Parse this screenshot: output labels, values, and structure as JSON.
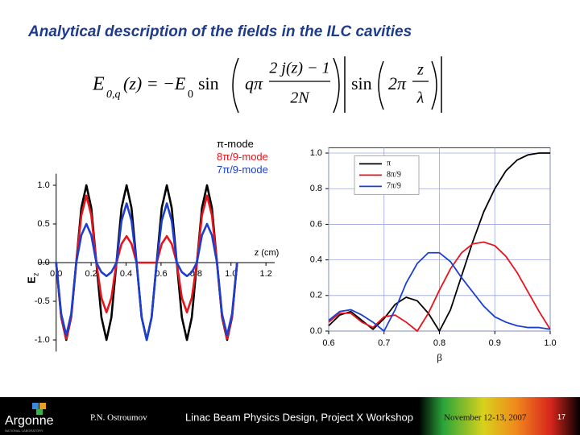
{
  "title": "Analytical description of the fields in the ILC cavities",
  "formula": [
    "E",
    "0,q",
    "(z) = −E",
    "0",
    "sin",
    "qπ",
    "2 j(z) − 1",
    "2N",
    "sin",
    "2π",
    "z",
    "λ"
  ],
  "chart_data": [
    {
      "type": "line",
      "x_label": "z (cm)",
      "y_label": "E",
      "y_label_sub": "z",
      "x": [
        0,
        0.029,
        0.058,
        0.086,
        0.115,
        0.144,
        0.173,
        0.201,
        0.23,
        0.259,
        0.288,
        0.316,
        0.345,
        0.374,
        0.403,
        0.431,
        0.46,
        0.489,
        0.518,
        0.546,
        0.575,
        0.604,
        0.633,
        0.661,
        0.69,
        0.719,
        0.748,
        0.776,
        0.805,
        0.834,
        0.863,
        0.891,
        0.92,
        0.949,
        0.978,
        1.006,
        1.035
      ],
      "series": [
        {
          "name": "π-mode",
          "color": "#000000",
          "values": [
            0,
            -0.707,
            -1,
            -0.707,
            0,
            0.707,
            1,
            0.707,
            0,
            -0.707,
            -1,
            -0.707,
            0,
            0.707,
            1,
            0.707,
            0,
            -0.707,
            -1,
            -0.707,
            0,
            0.707,
            1,
            0.707,
            0,
            -0.707,
            -1,
            -0.707,
            0,
            0.707,
            1,
            0.707,
            0,
            -0.707,
            -1,
            -0.707,
            0
          ]
        },
        {
          "name": "8π/9-mode",
          "color": "#e8141c",
          "values": [
            0,
            -0.696,
            -0.985,
            -0.696,
            0,
            0.612,
            0.866,
            0.612,
            0,
            -0.455,
            -0.643,
            -0.455,
            0,
            0.242,
            0.342,
            0.242,
            0,
            0,
            0,
            0,
            0,
            0.242,
            0.342,
            0.242,
            0,
            -0.455,
            -0.643,
            -0.455,
            0,
            0.612,
            0.866,
            0.612,
            0,
            -0.696,
            -0.985,
            -0.696,
            0
          ]
        },
        {
          "name": "7π/9-mode",
          "color": "#1c3fd0",
          "values": [
            0,
            -0.665,
            -0.94,
            -0.665,
            0,
            0.354,
            0.5,
            0.354,
            0,
            -0.123,
            -0.174,
            -0.123,
            0,
            0.542,
            0.766,
            0.542,
            0,
            -0.707,
            -1,
            -0.707,
            0,
            0.542,
            0.766,
            0.542,
            0,
            -0.123,
            -0.174,
            -0.123,
            0,
            0.354,
            0.5,
            0.354,
            0,
            -0.665,
            -0.94,
            -0.665,
            0
          ]
        }
      ],
      "xlim": [
        -0.1,
        1.25
      ],
      "ylim": [
        -1.15,
        1.15
      ],
      "xticks": [
        {
          "value": 0,
          "label": "0.0"
        },
        0.2,
        0.4,
        0.6,
        0.8,
        {
          "value": 1,
          "label": "1.0"
        },
        1.2
      ],
      "yticks": [
        {
          "value": -1,
          "label": "-1.0"
        },
        -0.5,
        {
          "value": 0,
          "label": "0.0"
        },
        0.5,
        {
          "value": 1,
          "label": "1.0"
        }
      ],
      "grid": false,
      "frame": false,
      "legend": "upper right"
    },
    {
      "type": "line",
      "x_label": "β",
      "x": [
        0.6,
        0.62,
        0.64,
        0.66,
        0.68,
        0.7,
        0.72,
        0.74,
        0.76,
        0.78,
        0.8,
        0.82,
        0.84,
        0.86,
        0.88,
        0.9,
        0.92,
        0.94,
        0.96,
        0.98,
        1
      ],
      "series": [
        {
          "name": "π",
          "color": "#000000",
          "values": [
            0.03,
            0.09,
            0.11,
            0.06,
            0.01,
            0.07,
            0.15,
            0.19,
            0.17,
            0.1,
            0,
            0.12,
            0.31,
            0.5,
            0.67,
            0.8,
            0.9,
            0.96,
            0.99,
            1,
            1
          ]
        },
        {
          "name": "8π/9",
          "color": "#e8141c",
          "values": [
            0.05,
            0.1,
            0.1,
            0.05,
            0.02,
            0.08,
            0.09,
            0.05,
            0,
            0.1,
            0.23,
            0.35,
            0.44,
            0.49,
            0.5,
            0.48,
            0.42,
            0.33,
            0.22,
            0.11,
            0.01
          ]
        },
        {
          "name": "7π/9",
          "color": "#1c3fd0",
          "values": [
            0.06,
            0.11,
            0.12,
            0.09,
            0.05,
            0,
            0.12,
            0.27,
            0.38,
            0.44,
            0.44,
            0.39,
            0.3,
            0.22,
            0.14,
            0.08,
            0.05,
            0.03,
            0.02,
            0.02,
            0.01
          ]
        }
      ],
      "xlim": [
        0.6,
        1
      ],
      "ylim": [
        0,
        1.03
      ],
      "xticks": [
        0.6,
        0.7,
        0.8,
        0.9,
        {
          "value": 1,
          "label": "1.0"
        }
      ],
      "yticks": [
        {
          "value": 0,
          "label": "0.0"
        },
        0.2,
        0.4,
        0.6,
        0.8,
        {
          "value": 1,
          "label": "1.0"
        }
      ],
      "grid": true,
      "frame": true,
      "legend": "upper left"
    }
  ],
  "footer": {
    "logo": "Argonne",
    "logo_sub": "NATIONAL LABORATORY",
    "author": "P.N. Ostroumov",
    "event": "Linac Beam Physics Design, Project X Workshop",
    "date": "November 12-13, 2007",
    "page": "17"
  }
}
